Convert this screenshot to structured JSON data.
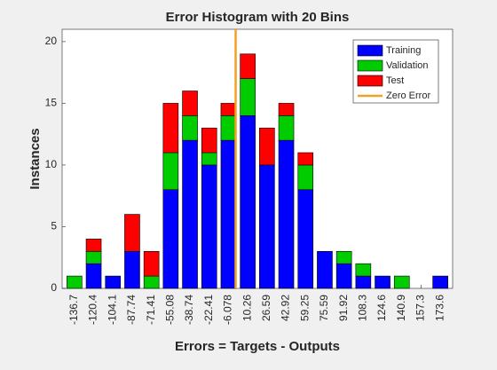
{
  "chart_data": {
    "type": "stacked_bar",
    "title": "Error Histogram with 20 Bins",
    "x_label": "Errors = Targets - Outputs",
    "y_label": "Instances",
    "categories": [
      "-136.7",
      "-120.4",
      "-104.1",
      "-87.74",
      "-71.41",
      "-55.08",
      "-38.74",
      "-22.41",
      "-6.078",
      "10.26",
      "26.59",
      "42.92",
      "59.25",
      "75.59",
      "91.92",
      "108.3",
      "124.6",
      "140.9",
      "157.3",
      "173.6"
    ],
    "series": [
      {
        "name": "Training",
        "color": "#0000ff",
        "values": [
          0,
          2,
          1,
          3,
          0,
          8,
          12,
          10,
          12,
          14,
          10,
          12,
          8,
          3,
          2,
          1,
          1,
          0,
          0,
          1
        ]
      },
      {
        "name": "Validation",
        "color": "#00cc00",
        "values": [
          1,
          1,
          0,
          0,
          1,
          3,
          2,
          1,
          2,
          3,
          0,
          2,
          2,
          0,
          1,
          1,
          0,
          1,
          0,
          0
        ]
      },
      {
        "name": "Test",
        "color": "#ff0000",
        "values": [
          0,
          1,
          0,
          3,
          2,
          4,
          2,
          2,
          1,
          2,
          3,
          1,
          1,
          0,
          0,
          0,
          0,
          0,
          0,
          0
        ]
      }
    ],
    "reference_line": {
      "name": "Zero Error",
      "x": 0,
      "color": "#f5a020"
    },
    "ylim": [
      0,
      21
    ],
    "yticks": [
      0,
      5,
      10,
      15,
      20
    ],
    "legend": "top-right"
  }
}
